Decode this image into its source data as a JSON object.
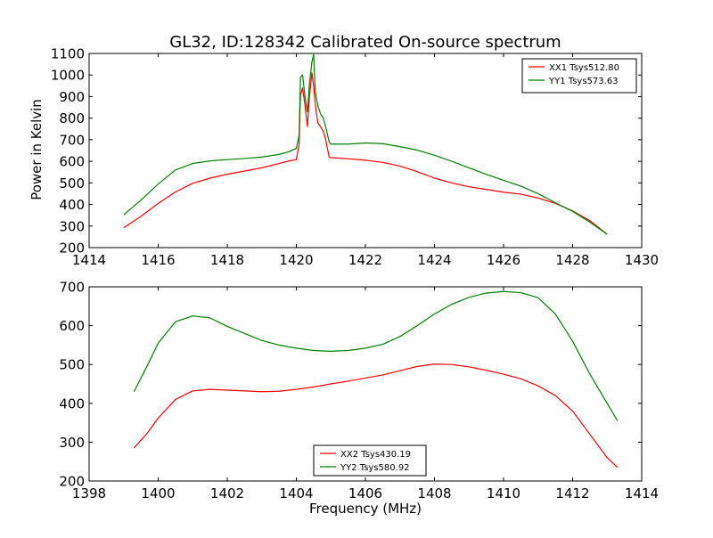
{
  "figure": {
    "title": "GL32, ID:128342 Calibrated On-source spectrum",
    "ylabel": "Power in Kelvin",
    "xlabel": "Frequency (MHz)"
  },
  "chart_data": [
    {
      "type": "line",
      "xlim": [
        1414,
        1430
      ],
      "ylim": [
        200,
        1100
      ],
      "xticks": [
        "1414",
        "1416",
        "1418",
        "1420",
        "1422",
        "1424",
        "1426",
        "1428",
        "1430"
      ],
      "yticks": [
        "200",
        "300",
        "400",
        "500",
        "600",
        "700",
        "800",
        "900",
        "1000",
        "1100"
      ],
      "legend_position": "top-right",
      "grid": false,
      "series": [
        {
          "name": "XX1 Tsys512.80",
          "color": "#ff0000",
          "points": [
            [
              1415.0,
              292
            ],
            [
              1415.5,
              345
            ],
            [
              1416.0,
              405
            ],
            [
              1416.5,
              458
            ],
            [
              1417.0,
              498
            ],
            [
              1417.5,
              522
            ],
            [
              1418.0,
              540
            ],
            [
              1418.5,
              555
            ],
            [
              1419.0,
              570
            ],
            [
              1419.5,
              590
            ],
            [
              1419.8,
              602
            ],
            [
              1420.0,
              608
            ],
            [
              1420.08,
              680
            ],
            [
              1420.12,
              905
            ],
            [
              1420.18,
              940
            ],
            [
              1420.25,
              860
            ],
            [
              1420.32,
              760
            ],
            [
              1420.38,
              900
            ],
            [
              1420.45,
              1010
            ],
            [
              1420.5,
              950
            ],
            [
              1420.55,
              860
            ],
            [
              1420.62,
              780
            ],
            [
              1420.7,
              760
            ],
            [
              1420.78,
              740
            ],
            [
              1420.85,
              700
            ],
            [
              1420.95,
              620
            ],
            [
              1421.0,
              617
            ],
            [
              1421.5,
              612
            ],
            [
              1422.0,
              605
            ],
            [
              1422.5,
              595
            ],
            [
              1423.0,
              578
            ],
            [
              1423.5,
              552
            ],
            [
              1424.0,
              522
            ],
            [
              1424.5,
              500
            ],
            [
              1425.0,
              482
            ],
            [
              1425.5,
              470
            ],
            [
              1426.0,
              457
            ],
            [
              1426.5,
              448
            ],
            [
              1427.0,
              430
            ],
            [
              1427.5,
              405
            ],
            [
              1428.0,
              370
            ],
            [
              1428.5,
              325
            ],
            [
              1429.0,
              262
            ]
          ]
        },
        {
          "name": "YY1 Tsys573.63",
          "color": "#008000",
          "points": [
            [
              1415.0,
              352
            ],
            [
              1415.5,
              420
            ],
            [
              1416.0,
              495
            ],
            [
              1416.5,
              560
            ],
            [
              1417.0,
              590
            ],
            [
              1417.5,
              602
            ],
            [
              1418.0,
              608
            ],
            [
              1418.5,
              613
            ],
            [
              1419.0,
              620
            ],
            [
              1419.5,
              632
            ],
            [
              1419.8,
              645
            ],
            [
              1420.0,
              660
            ],
            [
              1420.08,
              720
            ],
            [
              1420.12,
              990
            ],
            [
              1420.18,
              1000
            ],
            [
              1420.25,
              900
            ],
            [
              1420.32,
              830
            ],
            [
              1420.38,
              960
            ],
            [
              1420.45,
              1060
            ],
            [
              1420.5,
              1095
            ],
            [
              1420.55,
              920
            ],
            [
              1420.62,
              860
            ],
            [
              1420.7,
              820
            ],
            [
              1420.78,
              800
            ],
            [
              1420.85,
              760
            ],
            [
              1420.95,
              690
            ],
            [
              1421.0,
              680
            ],
            [
              1421.5,
              680
            ],
            [
              1422.0,
              685
            ],
            [
              1422.5,
              682
            ],
            [
              1423.0,
              668
            ],
            [
              1423.5,
              652
            ],
            [
              1424.0,
              628
            ],
            [
              1424.5,
              600
            ],
            [
              1425.0,
              570
            ],
            [
              1425.5,
              540
            ],
            [
              1426.0,
              512
            ],
            [
              1426.5,
              485
            ],
            [
              1427.0,
              450
            ],
            [
              1427.5,
              408
            ],
            [
              1428.0,
              368
            ],
            [
              1428.5,
              318
            ],
            [
              1429.0,
              262
            ]
          ]
        }
      ]
    },
    {
      "type": "line",
      "xlim": [
        1398,
        1414
      ],
      "ylim": [
        200,
        700
      ],
      "xticks": [
        "1398",
        "1400",
        "1402",
        "1404",
        "1406",
        "1408",
        "1410",
        "1412",
        "1414"
      ],
      "yticks": [
        "200",
        "300",
        "400",
        "500",
        "600",
        "700"
      ],
      "legend_position": "bottom-center",
      "grid": false,
      "series": [
        {
          "name": "XX2 Tsys430.19",
          "color": "#ff0000",
          "points": [
            [
              1399.3,
              285
            ],
            [
              1399.7,
              325
            ],
            [
              1400.0,
              362
            ],
            [
              1400.5,
              410
            ],
            [
              1401.0,
              432
            ],
            [
              1401.5,
              436
            ],
            [
              1402.0,
              434
            ],
            [
              1402.5,
              432
            ],
            [
              1403.0,
              430
            ],
            [
              1403.5,
              431
            ],
            [
              1404.0,
              436
            ],
            [
              1404.5,
              442
            ],
            [
              1405.0,
              450
            ],
            [
              1405.5,
              457
            ],
            [
              1406.0,
              465
            ],
            [
              1406.5,
              473
            ],
            [
              1407.0,
              484
            ],
            [
              1407.5,
              495
            ],
            [
              1408.0,
              501
            ],
            [
              1408.5,
              500
            ],
            [
              1409.0,
              494
            ],
            [
              1409.5,
              485
            ],
            [
              1410.0,
              475
            ],
            [
              1410.5,
              463
            ],
            [
              1411.0,
              445
            ],
            [
              1411.5,
              420
            ],
            [
              1412.0,
              380
            ],
            [
              1412.5,
              320
            ],
            [
              1413.0,
              260
            ],
            [
              1413.3,
              235
            ]
          ]
        },
        {
          "name": "YY2 Tsys580.92",
          "color": "#008000",
          "points": [
            [
              1399.3,
              430
            ],
            [
              1399.7,
              500
            ],
            [
              1400.0,
              555
            ],
            [
              1400.5,
              610
            ],
            [
              1401.0,
              625
            ],
            [
              1401.5,
              620
            ],
            [
              1402.0,
              598
            ],
            [
              1402.5,
              580
            ],
            [
              1403.0,
              562
            ],
            [
              1403.5,
              550
            ],
            [
              1404.0,
              542
            ],
            [
              1404.5,
              536
            ],
            [
              1405.0,
              534
            ],
            [
              1405.5,
              536
            ],
            [
              1406.0,
              542
            ],
            [
              1406.5,
              552
            ],
            [
              1407.0,
              572
            ],
            [
              1407.5,
              600
            ],
            [
              1408.0,
              630
            ],
            [
              1408.5,
              655
            ],
            [
              1409.0,
              673
            ],
            [
              1409.5,
              684
            ],
            [
              1410.0,
              688
            ],
            [
              1410.5,
              685
            ],
            [
              1411.0,
              672
            ],
            [
              1411.5,
              630
            ],
            [
              1412.0,
              560
            ],
            [
              1412.5,
              475
            ],
            [
              1413.0,
              400
            ],
            [
              1413.3,
              355
            ]
          ]
        }
      ]
    }
  ]
}
